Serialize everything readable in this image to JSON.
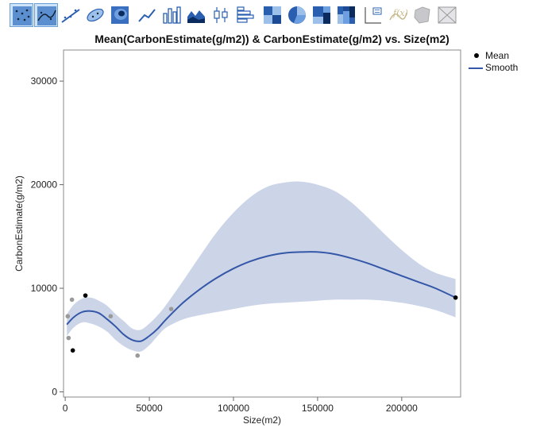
{
  "toolbar": {
    "buttons": [
      {
        "icon": "points-icon",
        "active": true
      },
      {
        "icon": "contour-points-icon",
        "active": true
      },
      {
        "icon": "line-of-fit-icon",
        "active": false
      },
      {
        "icon": "ellipse-icon",
        "active": false
      },
      {
        "icon": "contour-icon",
        "active": false
      },
      {
        "icon": "line-chart-icon",
        "active": false
      },
      {
        "icon": "bar-chart-icon",
        "active": false
      },
      {
        "icon": "area-chart-icon",
        "active": false
      },
      {
        "icon": "box-plot-icon",
        "active": false
      },
      {
        "icon": "histogram-icon",
        "active": false
      },
      {
        "icon": "heatmap-icon",
        "active": false
      },
      {
        "icon": "pie-chart-icon",
        "active": false
      },
      {
        "icon": "treemap-icon",
        "active": false
      },
      {
        "icon": "mosaic-icon",
        "active": false
      },
      {
        "icon": "caption-box-icon",
        "active": false
      },
      {
        "icon": "formula-icon",
        "active": false
      },
      {
        "icon": "map-shape-icon",
        "active": false
      },
      {
        "icon": "geographic-map-icon",
        "active": false
      }
    ]
  },
  "legend": {
    "items": [
      {
        "label": "Mean",
        "symbol": "dot",
        "color": "#000000"
      },
      {
        "label": "Smooth",
        "symbol": "line",
        "color": "#3557a8"
      }
    ]
  },
  "chart_data": {
    "type": "scatter",
    "title": "Mean(CarbonEstimate(g/m2)) & CarbonEstimate(g/m2) vs. Size(m2)",
    "xlabel": "Size(m2)",
    "ylabel": "CarbonEstimate(g/m2)",
    "xlim": [
      -1000,
      235000
    ],
    "ylim": [
      -500,
      33000
    ],
    "xticks": [
      0,
      50000,
      100000,
      150000,
      200000
    ],
    "yticks": [
      0,
      10000,
      20000,
      30000
    ],
    "grid": false,
    "legend_position": "top-right",
    "colors": {
      "mean": "#000000",
      "raw": "#9a9a9a",
      "smooth": "#3557a8",
      "band": "#ccd5e8"
    },
    "series": [
      {
        "name": "Mean",
        "kind": "points",
        "x": [
          4500,
          12000,
          232000
        ],
        "y": [
          4000,
          9300,
          9100
        ]
      },
      {
        "kind": "points",
        "x": [
          1500,
          2000,
          4000,
          27000,
          43000,
          63000
        ],
        "y": [
          7300,
          5200,
          8900,
          7300,
          3500,
          8000
        ]
      },
      {
        "name": "Smooth",
        "kind": "line",
        "x": [
          1000,
          5000,
          10000,
          15000,
          20000,
          25000,
          30000,
          35000,
          40000,
          45000,
          50000,
          55000,
          60000,
          70000,
          80000,
          90000,
          100000,
          110000,
          120000,
          130000,
          140000,
          150000,
          160000,
          170000,
          180000,
          190000,
          200000,
          210000,
          220000,
          232000
        ],
        "y": [
          6500,
          7200,
          7700,
          7800,
          7600,
          7000,
          6300,
          5500,
          5000,
          4900,
          5400,
          6100,
          7000,
          8600,
          9900,
          11000,
          11900,
          12600,
          13100,
          13400,
          13500,
          13500,
          13300,
          12900,
          12400,
          11800,
          11200,
          10600,
          10000,
          9100
        ],
        "lower": [
          5400,
          6200,
          6700,
          6600,
          6300,
          5800,
          5000,
          4400,
          4000,
          3900,
          4500,
          5400,
          6200,
          7000,
          7400,
          7700,
          8000,
          8300,
          8500,
          8600,
          8700,
          8800,
          8900,
          8900,
          8900,
          8800,
          8600,
          8300,
          7900,
          7200
        ],
        "upper": [
          7500,
          8400,
          9000,
          9100,
          8800,
          8300,
          7500,
          6800,
          6100,
          6000,
          6600,
          7400,
          8400,
          10700,
          13100,
          15400,
          17300,
          18800,
          19800,
          20200,
          20300,
          20000,
          19400,
          18300,
          16800,
          15200,
          13700,
          12400,
          11500,
          10900
        ]
      }
    ]
  }
}
